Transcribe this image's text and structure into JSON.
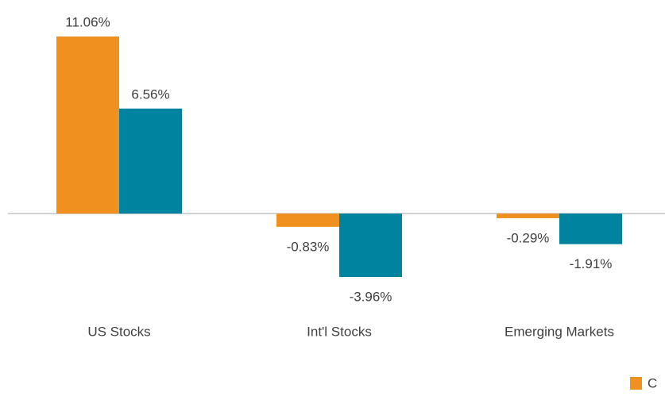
{
  "chart_data": {
    "type": "bar",
    "categories": [
      "US Stocks",
      "Int'l Stocks",
      "Emerging Markets"
    ],
    "series": [
      {
        "name": "C",
        "color": "#f0901e",
        "values": [
          11.06,
          -0.83,
          -0.29
        ],
        "value_labels": [
          "11.06%",
          "-0.83%",
          "-0.29%"
        ]
      },
      {
        "color": "#00839f",
        "values": [
          6.56,
          -3.96,
          -1.91
        ],
        "value_labels": [
          "6.56%",
          "-3.96%",
          "-1.91%"
        ]
      }
    ]
  }
}
